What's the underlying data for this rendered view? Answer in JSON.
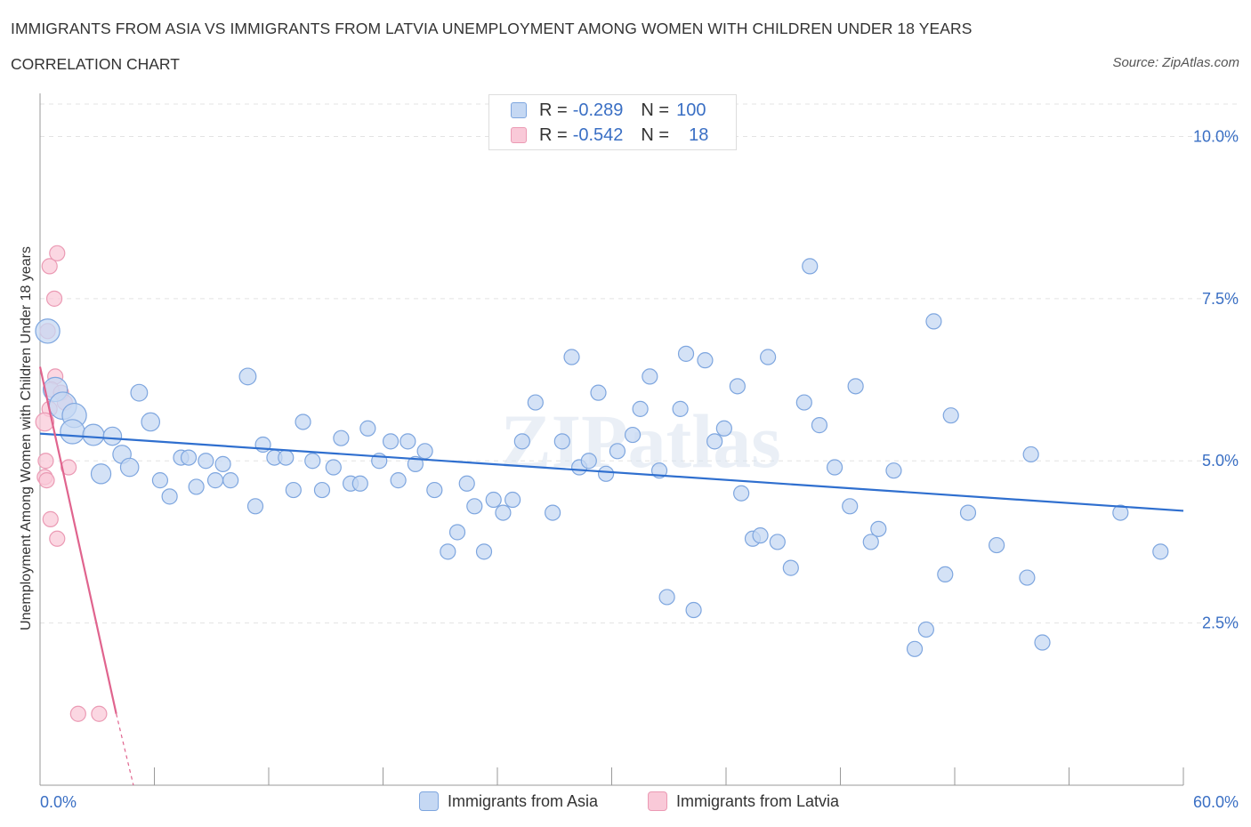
{
  "header": {
    "title": "IMMIGRANTS FROM ASIA VS IMMIGRANTS FROM LATVIA UNEMPLOYMENT AMONG WOMEN WITH CHILDREN UNDER 18 YEARS",
    "subtitle": "CORRELATION CHART",
    "source": "Source: ZipAtlas.com"
  },
  "legend": {
    "asia": {
      "r_label": "R =",
      "r_value": "-0.289",
      "n_label": "N =",
      "n_value": "100"
    },
    "latvia": {
      "r_label": "R =",
      "r_value": "-0.542",
      "n_label": "N =",
      "n_value": "18"
    }
  },
  "bottom_legend": {
    "asia": "Immigrants from Asia",
    "latvia": "Immigrants from Latvia"
  },
  "colors": {
    "asia_fill": "#c5d8f3",
    "asia_stroke": "#7ea6df",
    "asia_line": "#2f6fcf",
    "latvia_fill": "#f9c9d8",
    "latvia_stroke": "#eb9ab4",
    "latvia_line": "#e0648e",
    "tick_label": "#3a6fc4",
    "grid": "#e3e3e3"
  },
  "chart_data": {
    "type": "scatter",
    "title": "IMMIGRANTS FROM ASIA VS IMMIGRANTS FROM LATVIA UNEMPLOYMENT AMONG WOMEN WITH CHILDREN UNDER 18 YEARS",
    "xlabel": "",
    "ylabel": "Unemployment Among Women with Children Under 18 years",
    "xlim": [
      0,
      60
    ],
    "ylim": [
      0,
      10.5
    ],
    "x_tick_labels": [
      "0.0%",
      "60.0%"
    ],
    "y_ticks": [
      2.5,
      5.0,
      7.5,
      10.0
    ],
    "y_tick_labels": [
      "2.5%",
      "5.0%",
      "7.5%",
      "10.0%"
    ],
    "grid": true,
    "watermark": "ZIPatlas",
    "series": [
      {
        "name": "Immigrants from Asia",
        "trend": {
          "x0": 0,
          "y0": 5.42,
          "x1": 60,
          "y1": 4.23
        },
        "points": [
          [
            0.4,
            7.0,
            1.6
          ],
          [
            0.8,
            6.1,
            1.6
          ],
          [
            1.2,
            5.85,
            1.8
          ],
          [
            1.8,
            5.7,
            1.6
          ],
          [
            1.7,
            5.45,
            1.6
          ],
          [
            2.8,
            5.4,
            1.4
          ],
          [
            3.8,
            5.38,
            1.2
          ],
          [
            3.2,
            4.8,
            1.3
          ],
          [
            4.3,
            5.1,
            1.2
          ],
          [
            4.7,
            4.9,
            1.2
          ],
          [
            5.2,
            6.05,
            1.1
          ],
          [
            5.8,
            5.6,
            1.2
          ],
          [
            6.3,
            4.7,
            1.0
          ],
          [
            6.8,
            4.45,
            1.0
          ],
          [
            7.4,
            5.05,
            1.0
          ],
          [
            7.8,
            5.05,
            1.0
          ],
          [
            8.2,
            4.6,
            1.0
          ],
          [
            8.7,
            5.0,
            1.0
          ],
          [
            9.2,
            4.7,
            1.0
          ],
          [
            9.6,
            4.95,
            1.0
          ],
          [
            10.0,
            4.7,
            1.0
          ],
          [
            11.3,
            4.3,
            1.0
          ],
          [
            10.9,
            6.3,
            1.1
          ],
          [
            11.7,
            5.25,
            1.0
          ],
          [
            12.3,
            5.05,
            1.0
          ],
          [
            12.9,
            5.05,
            1.0
          ],
          [
            13.3,
            4.55,
            1.0
          ],
          [
            13.8,
            5.6,
            1.0
          ],
          [
            14.3,
            5.0,
            1.0
          ],
          [
            14.8,
            4.55,
            1.0
          ],
          [
            15.4,
            4.9,
            1.0
          ],
          [
            15.8,
            5.35,
            1.0
          ],
          [
            16.3,
            4.65,
            1.0
          ],
          [
            16.8,
            4.65,
            1.0
          ],
          [
            17.2,
            5.5,
            1.0
          ],
          [
            17.8,
            5.0,
            1.0
          ],
          [
            18.4,
            5.3,
            1.0
          ],
          [
            18.8,
            4.7,
            1.0
          ],
          [
            19.3,
            5.3,
            1.0
          ],
          [
            19.7,
            4.95,
            1.0
          ],
          [
            20.2,
            5.15,
            1.0
          ],
          [
            20.7,
            4.55,
            1.0
          ],
          [
            21.4,
            3.6,
            1.0
          ],
          [
            21.9,
            3.9,
            1.0
          ],
          [
            22.4,
            4.65,
            1.0
          ],
          [
            22.8,
            4.3,
            1.0
          ],
          [
            23.3,
            3.6,
            1.0
          ],
          [
            23.8,
            4.4,
            1.0
          ],
          [
            24.3,
            4.2,
            1.0
          ],
          [
            24.8,
            4.4,
            1.0
          ],
          [
            25.3,
            5.3,
            1.0
          ],
          [
            26.0,
            5.9,
            1.0
          ],
          [
            26.9,
            4.2,
            1.0
          ],
          [
            27.4,
            5.3,
            1.0
          ],
          [
            27.9,
            6.6,
            1.0
          ],
          [
            28.3,
            4.9,
            1.0
          ],
          [
            28.8,
            5.0,
            1.0
          ],
          [
            29.3,
            6.05,
            1.0
          ],
          [
            29.7,
            4.8,
            1.0
          ],
          [
            30.3,
            5.15,
            1.0
          ],
          [
            31.1,
            5.4,
            1.0
          ],
          [
            31.5,
            5.8,
            1.0
          ],
          [
            32.0,
            6.3,
            1.0
          ],
          [
            32.5,
            4.85,
            1.0
          ],
          [
            32.9,
            2.9,
            1.0
          ],
          [
            33.6,
            5.8,
            1.0
          ],
          [
            33.9,
            6.65,
            1.0
          ],
          [
            34.3,
            2.7,
            1.0
          ],
          [
            34.9,
            6.55,
            1.0
          ],
          [
            35.4,
            5.3,
            1.0
          ],
          [
            35.9,
            5.5,
            1.0
          ],
          [
            36.6,
            6.15,
            1.0
          ],
          [
            36.8,
            4.5,
            1.0
          ],
          [
            37.4,
            3.8,
            1.0
          ],
          [
            37.8,
            3.85,
            1.0
          ],
          [
            38.2,
            6.6,
            1.0
          ],
          [
            38.7,
            3.75,
            1.0
          ],
          [
            39.4,
            3.35,
            1.0
          ],
          [
            40.1,
            5.9,
            1.0
          ],
          [
            40.4,
            8.0,
            1.0
          ],
          [
            40.9,
            5.55,
            1.0
          ],
          [
            41.7,
            4.9,
            1.0
          ],
          [
            42.5,
            4.3,
            1.0
          ],
          [
            42.8,
            6.15,
            1.0
          ],
          [
            43.6,
            3.75,
            1.0
          ],
          [
            44.0,
            3.95,
            1.0
          ],
          [
            44.8,
            4.85,
            1.0
          ],
          [
            45.9,
            2.1,
            1.0
          ],
          [
            46.5,
            2.4,
            1.0
          ],
          [
            46.9,
            7.15,
            1.0
          ],
          [
            47.5,
            3.25,
            1.0
          ],
          [
            47.8,
            5.7,
            1.0
          ],
          [
            48.7,
            4.2,
            1.0
          ],
          [
            50.2,
            3.7,
            1.0
          ],
          [
            51.8,
            3.2,
            1.0
          ],
          [
            52.0,
            5.1,
            1.0
          ],
          [
            52.6,
            2.2,
            1.0
          ],
          [
            56.7,
            4.2,
            1.0
          ],
          [
            58.8,
            3.6,
            1.0
          ]
        ]
      },
      {
        "name": "Immigrants from Latvia",
        "trend": {
          "x0": 0,
          "y0": 6.45,
          "x1": 4.0,
          "y1": 1.1,
          "dash_to_x": 4.9
        },
        "points": [
          [
            0.4,
            7.0,
            1.0
          ],
          [
            0.5,
            8.0,
            1.0
          ],
          [
            0.9,
            8.2,
            1.0
          ],
          [
            0.75,
            7.5,
            1.0
          ],
          [
            0.8,
            6.3,
            1.0
          ],
          [
            0.6,
            6.1,
            1.0
          ],
          [
            1.1,
            6.05,
            1.0
          ],
          [
            0.5,
            5.8,
            1.0
          ],
          [
            1.3,
            5.9,
            1.0
          ],
          [
            0.25,
            5.6,
            1.2
          ],
          [
            0.3,
            5.0,
            1.0
          ],
          [
            0.25,
            4.75,
            1.0
          ],
          [
            1.5,
            4.9,
            1.0
          ],
          [
            0.35,
            4.7,
            1.0
          ],
          [
            0.55,
            4.1,
            1.0
          ],
          [
            0.9,
            3.8,
            1.0
          ],
          [
            2.0,
            1.1,
            1.0
          ],
          [
            3.1,
            1.1,
            1.0
          ]
        ]
      }
    ]
  }
}
